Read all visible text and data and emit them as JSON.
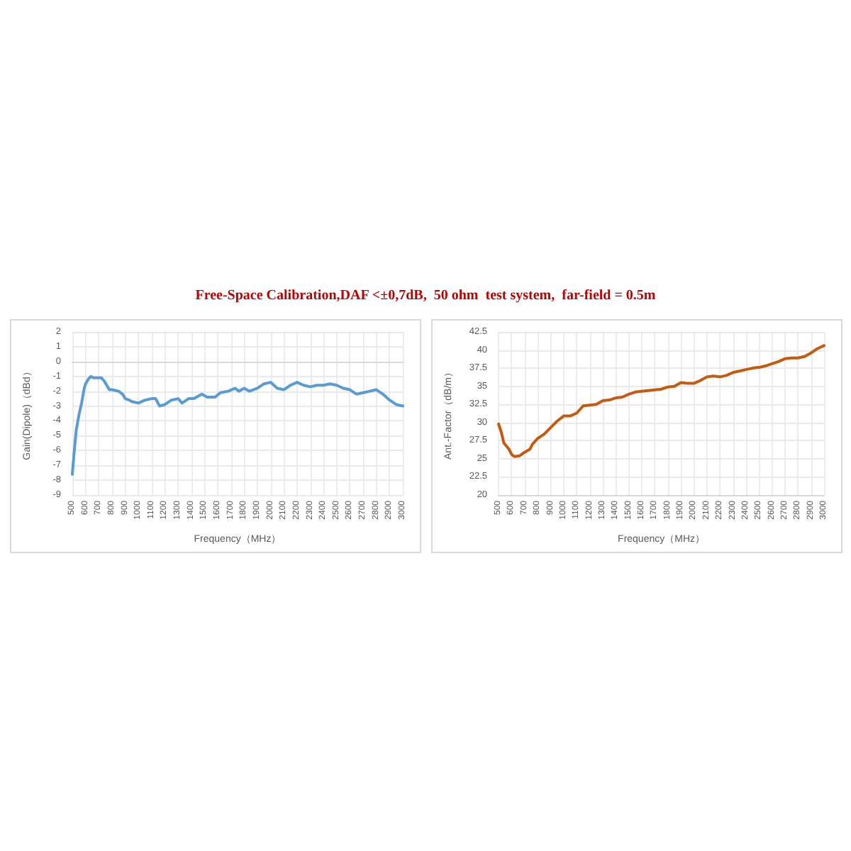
{
  "chart_data": [
    {
      "type": "line",
      "title": "Free-Space Calibration,DAF <±0,7dB,  50 ohm  test system,  far-field = 0.5m",
      "xlabel": "Frequency（MHz）",
      "ylabel": "Gain(Dipole)（dBd）",
      "xlim": [
        500,
        3000
      ],
      "xticks": [
        500,
        600,
        700,
        800,
        900,
        1000,
        1100,
        1200,
        1300,
        1400,
        1500,
        1600,
        1700,
        1800,
        1900,
        2000,
        2100,
        2200,
        2300,
        2400,
        2500,
        2600,
        2700,
        2800,
        2900,
        3000
      ],
      "ylim": [
        -9,
        2
      ],
      "yticks": [
        -9,
        -8,
        -7,
        -6,
        -5,
        -4,
        -3,
        -2,
        -1,
        0,
        1,
        2
      ],
      "grid": true,
      "marker": "none",
      "line_style": "solid",
      "series": [
        {
          "color": "#5b9bd5",
          "x": [
            500,
            510,
            520,
            530,
            550,
            570,
            590,
            600,
            620,
            640,
            660,
            700,
            720,
            740,
            760,
            780,
            800,
            850,
            880,
            900,
            930,
            950,
            1000,
            1050,
            1100,
            1130,
            1160,
            1200,
            1250,
            1300,
            1330,
            1380,
            1420,
            1480,
            1520,
            1580,
            1620,
            1680,
            1730,
            1760,
            1800,
            1840,
            1900,
            1950,
            2000,
            2050,
            2100,
            2150,
            2200,
            2250,
            2300,
            2350,
            2400,
            2450,
            2500,
            2550,
            2600,
            2650,
            2700,
            2750,
            2800,
            2850,
            2900,
            2950,
            3000
          ],
          "values": [
            -7.6,
            -6.5,
            -5.5,
            -4.6,
            -3.6,
            -2.8,
            -1.8,
            -1.5,
            -1.2,
            -1.0,
            -1.1,
            -1.1,
            -1.1,
            -1.3,
            -1.6,
            -1.9,
            -1.9,
            -2.0,
            -2.2,
            -2.5,
            -2.6,
            -2.7,
            -2.8,
            -2.6,
            -2.5,
            -2.5,
            -3.0,
            -2.9,
            -2.6,
            -2.5,
            -2.8,
            -2.5,
            -2.5,
            -2.2,
            -2.4,
            -2.4,
            -2.1,
            -2.0,
            -1.8,
            -2.0,
            -1.8,
            -2.0,
            -1.8,
            -1.5,
            -1.4,
            -1.8,
            -1.9,
            -1.6,
            -1.4,
            -1.6,
            -1.7,
            -1.6,
            -1.6,
            -1.5,
            -1.6,
            -1.8,
            -1.9,
            -2.2,
            -2.1,
            -2.0,
            -1.9,
            -2.2,
            -2.6,
            -2.9,
            -3.0
          ]
        }
      ]
    },
    {
      "type": "line",
      "xlabel": "Frequency（MHz）",
      "ylabel": "Ant.-Factor（dB/m）",
      "xlim": [
        500,
        3000
      ],
      "xticks": [
        500,
        600,
        700,
        800,
        900,
        1000,
        1100,
        1200,
        1300,
        1400,
        1500,
        1600,
        1700,
        1800,
        1900,
        2000,
        2100,
        2200,
        2300,
        2400,
        2500,
        2600,
        2700,
        2800,
        2900,
        3000
      ],
      "ylim": [
        20,
        42.5
      ],
      "yticks": [
        20,
        22.5,
        25,
        27.5,
        30,
        32.5,
        35,
        37.5,
        40,
        42.5
      ],
      "grid": true,
      "marker": "none",
      "line_style": "solid",
      "series": [
        {
          "color": "#c55a11",
          "x": [
            500,
            520,
            540,
            580,
            600,
            620,
            660,
            700,
            740,
            760,
            800,
            850,
            900,
            950,
            1000,
            1050,
            1100,
            1150,
            1200,
            1250,
            1300,
            1350,
            1400,
            1450,
            1500,
            1550,
            1600,
            1650,
            1700,
            1750,
            1800,
            1850,
            1900,
            1950,
            2000,
            2050,
            2100,
            2150,
            2200,
            2250,
            2300,
            2350,
            2400,
            2450,
            2500,
            2550,
            2600,
            2650,
            2700,
            2750,
            2800,
            2850,
            2900,
            2950,
            3000
          ],
          "values": [
            29.8,
            28.7,
            27.2,
            26.3,
            25.6,
            25.3,
            25.4,
            25.9,
            26.3,
            27.0,
            27.8,
            28.4,
            29.3,
            30.2,
            30.9,
            30.9,
            31.3,
            32.3,
            32.4,
            32.5,
            33.0,
            33.1,
            33.4,
            33.5,
            33.9,
            34.2,
            34.3,
            34.4,
            34.5,
            34.6,
            34.9,
            35.0,
            35.5,
            35.4,
            35.4,
            35.8,
            36.3,
            36.4,
            36.3,
            36.5,
            36.9,
            37.1,
            37.3,
            37.5,
            37.6,
            37.8,
            38.1,
            38.4,
            38.8,
            38.9,
            38.9,
            39.1,
            39.6,
            40.2,
            40.6
          ]
        }
      ]
    }
  ]
}
